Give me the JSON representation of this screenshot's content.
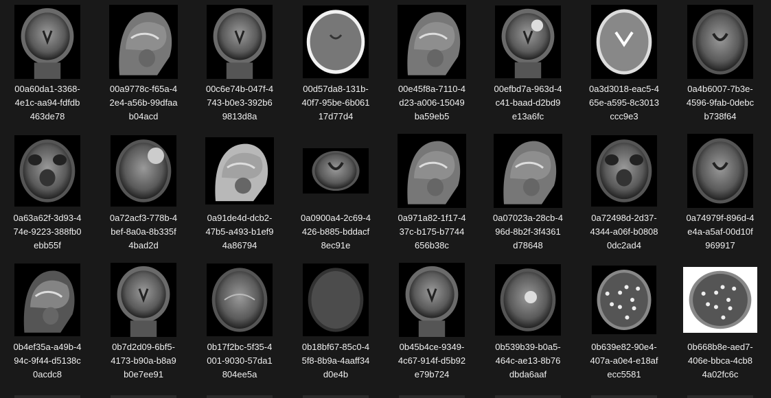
{
  "files": [
    {
      "label": "00a60da1-3368-\n4e1c-aa94-fdfdb\n463de78",
      "scan": "coronal"
    },
    {
      "label": "00a9778c-f65a-4\n2e4-a56b-99dfaa\nb04acd",
      "scan": "sagittal"
    },
    {
      "label": "00c6e74b-047f-4\n743-b0e3-392b6\n9813d8a",
      "scan": "coronal"
    },
    {
      "label": "00d57da8-131b-\n40f7-95be-6b061\n17d77d4",
      "scan": "ct"
    },
    {
      "label": "00e45f8a-7110-4\nd23-a006-15049\nba59eb5",
      "scan": "sagittal"
    },
    {
      "label": "00efbd7a-963d-4\nc41-baad-d2bd9\ne13a6fc",
      "scan": "coronal-tumor"
    },
    {
      "label": "0a3d3018-eac5-4\n65e-a595-8c3013\nccc9e3",
      "scan": "axial-t2"
    },
    {
      "label": "0a4b6007-7b3e-\n4596-9fab-0debc\nb738f64",
      "scan": "axial-t1"
    },
    {
      "label": "0a63a62f-3d93-4\n74e-9223-388fb0\nebb55f",
      "scan": "axial-low"
    },
    {
      "label": "0a72acf3-778b-4\nbef-8a0a-8b335f\n4bad2d",
      "scan": "axial-tumor"
    },
    {
      "label": "0a91de4d-dcb2-\n47b5-a493-b1ef9\n4a86794",
      "scan": "sagittal-bright"
    },
    {
      "label": "0a0900a4-2c69-4\n426-b885-bddacf\n8ec91e",
      "scan": "axial-small"
    },
    {
      "label": "0a971a82-1f17-4\n37c-b175-b7744\n656b38c",
      "scan": "sagittal"
    },
    {
      "label": "0a07023a-28cb-4\n96d-8b2f-3f4361\nd78648",
      "scan": "sagittal"
    },
    {
      "label": "0a72498d-2d37-\n4344-a06f-b0808\n0dc2ad4",
      "scan": "axial-low"
    },
    {
      "label": "0a74979f-896d-4\ne4a-a5af-00d10f\n969917",
      "scan": "axial-t1"
    },
    {
      "label": "0b4ef35a-a49b-4\n94c-9f44-d5138c\n0acdc8",
      "scan": "sagittal-dark"
    },
    {
      "label": "0b7d2d09-6bf5-\n4173-b90a-b8a9\nb0e7ee91",
      "scan": "coronal"
    },
    {
      "label": "0b17f2bc-5f35-4\n001-9030-57da1\n804ee5a",
      "scan": "axial-contrast"
    },
    {
      "label": "0b18bf67-85c0-4\n5f8-8b9a-4aaff34\nd0e4b",
      "scan": "axial-dark"
    },
    {
      "label": "0b45b4ce-9349-\n4c67-914f-d5b92\ne79b724",
      "scan": "coronal"
    },
    {
      "label": "0b539b39-b0a5-\n464c-ae13-8b76\ndbda6aaf",
      "scan": "axial-tumor2"
    },
    {
      "label": "0b639e82-90e4-\n407a-a0e4-e18af\necc5581",
      "scan": "axial-flair"
    },
    {
      "label": "0b668b8e-aed7-\n406e-bbca-4cb8\n4a02fc6c",
      "scan": "axial-flair-white"
    }
  ]
}
